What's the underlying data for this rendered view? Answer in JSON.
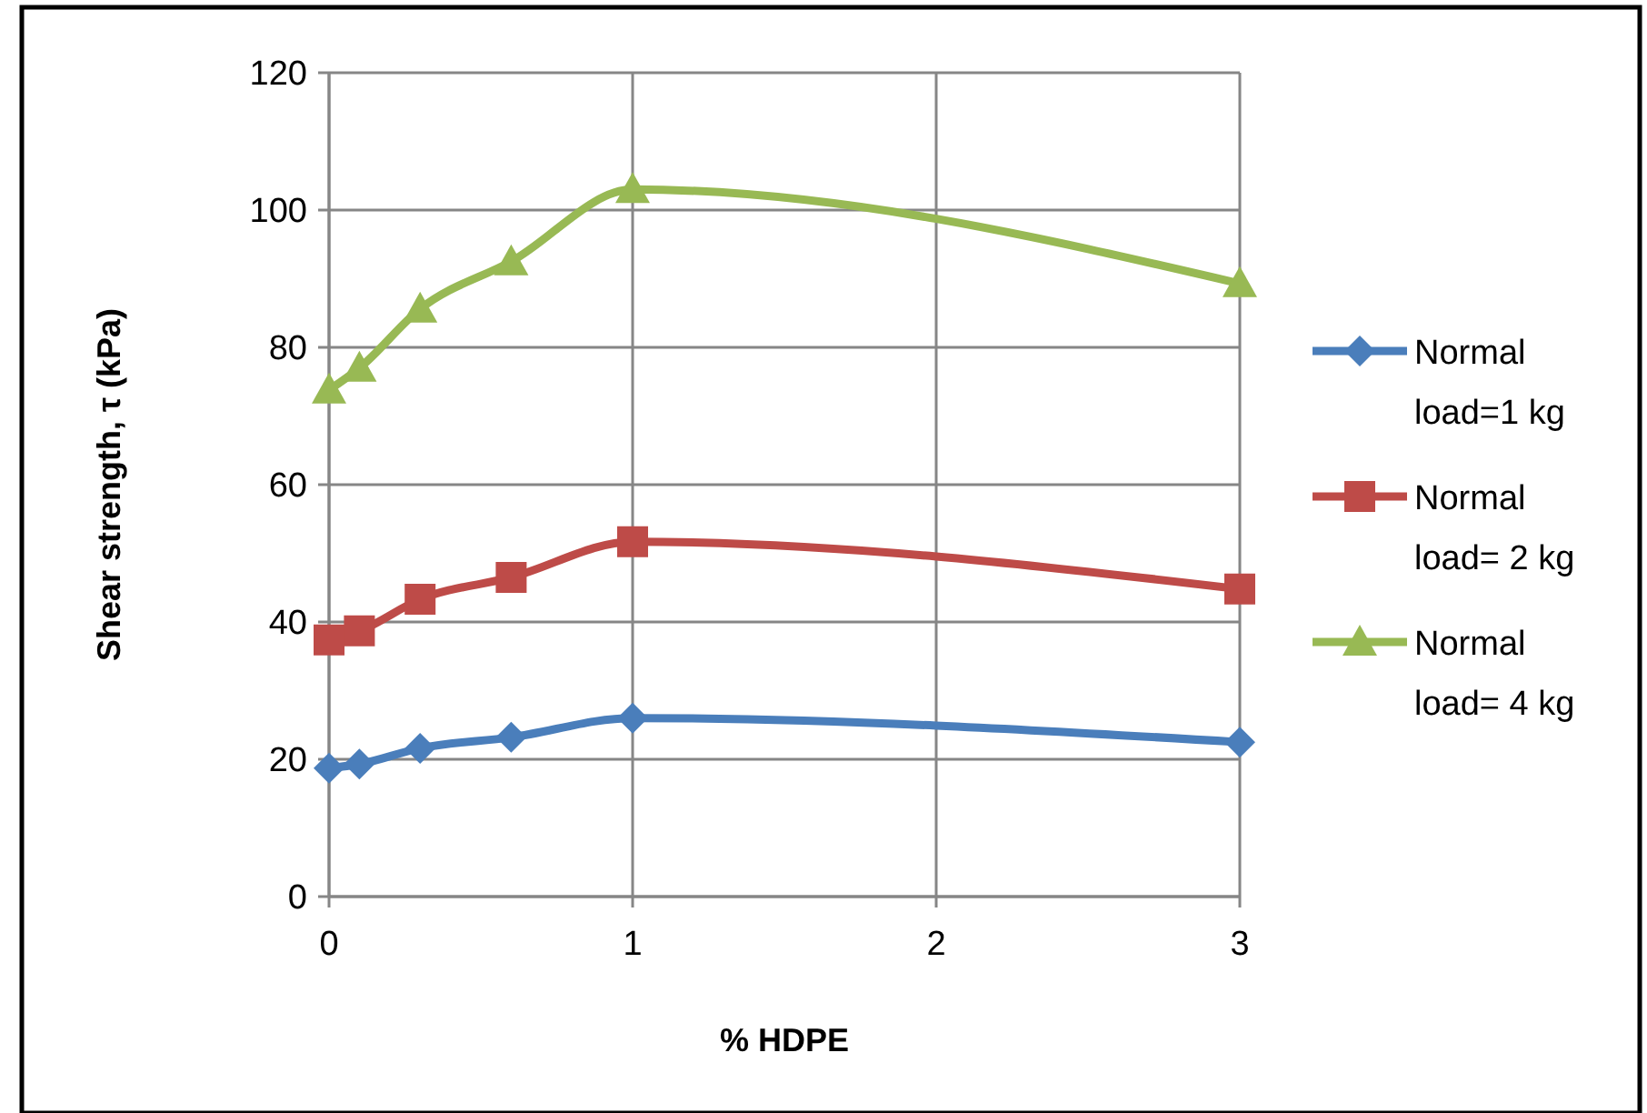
{
  "chart_data": {
    "type": "line",
    "xlabel": "% HDPE",
    "ylabel": "Shear strength, τ (kPa)",
    "x": [
      0,
      0.1,
      0.3,
      0.6,
      1,
      3
    ],
    "series": [
      {
        "name": "Normal load=1 kg",
        "color": "#4a7ebb",
        "marker": "diamond",
        "values": [
          18.7,
          19.3,
          21.6,
          23.2,
          26.0,
          22.5
        ]
      },
      {
        "name": "Normal load= 2 kg",
        "color": "#be4b48",
        "marker": "square",
        "values": [
          37.4,
          38.7,
          43.3,
          46.5,
          51.7,
          44.8
        ]
      },
      {
        "name": "Normal load= 4 kg",
        "color": "#98b954",
        "marker": "triangle",
        "values": [
          73.8,
          77.0,
          85.6,
          92.5,
          103.0,
          89.3
        ]
      }
    ],
    "xlim": [
      0,
      3
    ],
    "xticks": [
      0,
      1,
      2,
      3
    ],
    "ylim": [
      0,
      120
    ],
    "yticks": [
      0,
      20,
      40,
      60,
      80,
      100,
      120
    ],
    "grid": true,
    "legend": "right"
  }
}
